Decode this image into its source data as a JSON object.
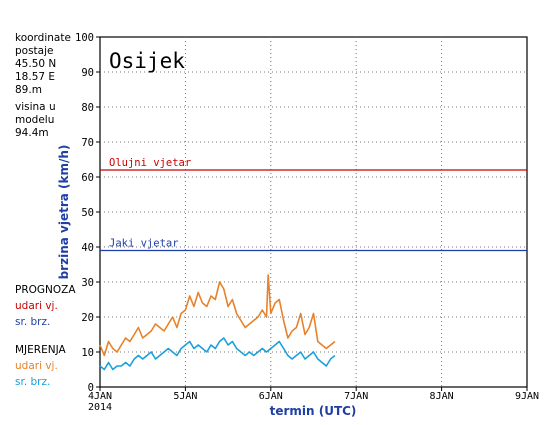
{
  "station_info": {
    "lines": [
      "koordinate",
      "postaje",
      "45.50  N",
      "18.57  E",
      "89.m",
      "visina  u",
      "modelu",
      "94.4m"
    ]
  },
  "legend": {
    "forecast_heading": "PROGNOZA",
    "forecast_gust": "udari  vj.",
    "forecast_mean": "sr.  brz.",
    "measured_heading": "MJERENJA",
    "measured_gust": "udari  vj.",
    "measured_mean": "sr.  brz."
  },
  "colors": {
    "forecast_gust": "#cc0000",
    "forecast_mean": "#1f3fa6",
    "measured_gust": "#e8822a",
    "measured_mean": "#1aa0dc",
    "storm_line": "#cc0000",
    "strong_line": "#1f3fa6",
    "axis_label": "#1f3fa6"
  },
  "chart_data": {
    "type": "line",
    "title": "Osijek",
    "xlabel": "termin (UTC)",
    "ylabel": "brzina vjetra (km/h)",
    "ylim": [
      0,
      100
    ],
    "yticks": [
      0,
      10,
      20,
      30,
      40,
      50,
      60,
      70,
      80,
      90,
      100
    ],
    "xlim": [
      4,
      9
    ],
    "xticks": [
      {
        "x": 4,
        "label": "4JAN"
      },
      {
        "x": 5,
        "label": "5JAN"
      },
      {
        "x": 6,
        "label": "6JAN"
      },
      {
        "x": 7,
        "label": "7JAN"
      },
      {
        "x": 8,
        "label": "8JAN"
      },
      {
        "x": 9,
        "label": "9JAN"
      }
    ],
    "x_sublabel": "2014",
    "grid": true,
    "thresholds": [
      {
        "label": "Olujni  vjetar",
        "value": 62
      },
      {
        "label": "Jaki  vjetar",
        "value": 39
      }
    ],
    "series": [
      {
        "name": "udari  vj.",
        "x": [
          4.0,
          4.05,
          4.1,
          4.15,
          4.2,
          4.25,
          4.3,
          4.35,
          4.4,
          4.45,
          4.5,
          4.55,
          4.6,
          4.65,
          4.7,
          4.75,
          4.8,
          4.85,
          4.9,
          4.95,
          5.0,
          5.05,
          5.1,
          5.15,
          5.2,
          5.25,
          5.3,
          5.35,
          5.4,
          5.45,
          5.5,
          5.55,
          5.6,
          5.65,
          5.7,
          5.75,
          5.8,
          5.85,
          5.9,
          5.95,
          5.97,
          6.0,
          6.05,
          6.1,
          6.15,
          6.2,
          6.25,
          6.3,
          6.35,
          6.4,
          6.45,
          6.5,
          6.55,
          6.6,
          6.65,
          6.7,
          6.75
        ],
        "y": [
          12,
          9,
          13,
          11,
          10,
          12,
          14,
          13,
          15,
          17,
          14,
          15,
          16,
          18,
          17,
          16,
          18,
          20,
          17,
          21,
          22,
          26,
          23,
          27,
          24,
          23,
          26,
          25,
          30,
          28,
          23,
          25,
          21,
          19,
          17,
          18,
          19,
          20,
          22,
          20,
          32,
          21,
          24,
          25,
          19,
          14,
          16,
          17,
          21,
          15,
          17,
          21,
          13,
          12,
          11,
          12,
          13
        ]
      },
      {
        "name": "sr.  brz.",
        "x": [
          4.0,
          4.05,
          4.1,
          4.15,
          4.2,
          4.25,
          4.3,
          4.35,
          4.4,
          4.45,
          4.5,
          4.55,
          4.6,
          4.65,
          4.7,
          4.75,
          4.8,
          4.85,
          4.9,
          4.95,
          5.0,
          5.05,
          5.1,
          5.15,
          5.2,
          5.25,
          5.3,
          5.35,
          5.4,
          5.45,
          5.5,
          5.55,
          5.6,
          5.65,
          5.7,
          5.75,
          5.8,
          5.85,
          5.9,
          5.95,
          6.0,
          6.05,
          6.1,
          6.15,
          6.2,
          6.25,
          6.3,
          6.35,
          6.4,
          6.45,
          6.5,
          6.55,
          6.6,
          6.65,
          6.7,
          6.75
        ],
        "y": [
          6,
          5,
          7,
          5,
          6,
          6,
          7,
          6,
          8,
          9,
          8,
          9,
          10,
          8,
          9,
          10,
          11,
          10,
          9,
          11,
          12,
          13,
          11,
          12,
          11,
          10,
          12,
          11,
          13,
          14,
          12,
          13,
          11,
          10,
          9,
          10,
          9,
          10,
          11,
          10,
          11,
          12,
          13,
          11,
          9,
          8,
          9,
          10,
          8,
          9,
          10,
          8,
          7,
          6,
          8,
          9
        ]
      }
    ]
  }
}
